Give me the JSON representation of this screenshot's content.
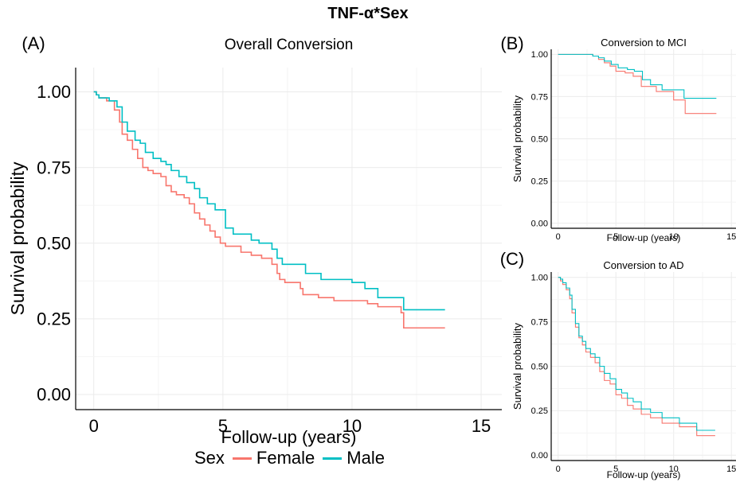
{
  "figure": {
    "title": "TNF-α*Sex",
    "legend": {
      "title": "Sex",
      "entries": [
        {
          "label": "Female",
          "color": "#F8766D"
        },
        {
          "label": "Male",
          "color": "#00BFC4"
        }
      ]
    }
  },
  "chart_data": [
    {
      "panel": "(A)",
      "type": "line",
      "step": true,
      "title": "Overall Conversion",
      "xlabel": "Follow-up (years)",
      "ylabel": "Survival probability",
      "xlim": [
        -0.7,
        15.8
      ],
      "ylim": [
        -0.05,
        1.08
      ],
      "xticks": [
        0,
        5,
        10,
        15
      ],
      "yticks": [
        0.0,
        0.25,
        0.5,
        0.75,
        1.0
      ],
      "ytick_labels": [
        "0.00",
        "0.25",
        "0.50",
        "0.75",
        "1.00"
      ],
      "grid": true,
      "series": [
        {
          "name": "Female",
          "color": "#F8766D",
          "x": [
            0,
            0.1,
            0.2,
            0.4,
            0.5,
            0.8,
            1.0,
            1.1,
            1.3,
            1.5,
            1.7,
            1.9,
            2.1,
            2.3,
            2.6,
            2.8,
            3.0,
            3.2,
            3.5,
            3.7,
            3.9,
            4.1,
            4.3,
            4.5,
            4.7,
            4.9,
            5.1,
            5.3,
            5.7,
            6.1,
            6.5,
            6.9,
            7.1,
            7.2,
            7.4,
            7.6,
            8.0,
            8.1,
            8.7,
            9.3,
            10.0,
            10.6,
            11.0,
            11.9,
            12.0,
            13.6
          ],
          "y": [
            1.0,
            0.99,
            0.98,
            0.98,
            0.97,
            0.94,
            0.9,
            0.86,
            0.84,
            0.81,
            0.78,
            0.75,
            0.74,
            0.73,
            0.72,
            0.69,
            0.67,
            0.66,
            0.65,
            0.63,
            0.6,
            0.58,
            0.56,
            0.54,
            0.52,
            0.5,
            0.49,
            0.49,
            0.47,
            0.46,
            0.45,
            0.43,
            0.4,
            0.38,
            0.37,
            0.37,
            0.35,
            0.33,
            0.32,
            0.31,
            0.31,
            0.3,
            0.29,
            0.27,
            0.22,
            0.22
          ]
        },
        {
          "name": "Male",
          "color": "#00BFC4",
          "x": [
            0,
            0.1,
            0.2,
            0.4,
            0.6,
            0.9,
            1.1,
            1.3,
            1.6,
            1.8,
            2.0,
            2.3,
            2.6,
            2.8,
            3.0,
            3.3,
            3.6,
            3.9,
            4.1,
            4.4,
            4.7,
            5.1,
            5.4,
            6.1,
            6.4,
            6.9,
            7.1,
            7.3,
            8.2,
            8.8,
            10.0,
            10.5,
            11.0,
            11.9,
            12.0,
            13.6
          ],
          "y": [
            1.0,
            0.99,
            0.98,
            0.98,
            0.97,
            0.95,
            0.9,
            0.87,
            0.84,
            0.83,
            0.8,
            0.78,
            0.77,
            0.76,
            0.74,
            0.72,
            0.7,
            0.68,
            0.65,
            0.63,
            0.61,
            0.55,
            0.53,
            0.51,
            0.5,
            0.48,
            0.45,
            0.43,
            0.4,
            0.38,
            0.37,
            0.35,
            0.32,
            0.32,
            0.28,
            0.28
          ]
        }
      ]
    },
    {
      "panel": "(B)",
      "type": "line",
      "step": true,
      "title": "Conversion to MCI",
      "xlabel": "Follow-up (years)",
      "ylabel": "Survival probability",
      "xlim": [
        -0.6,
        15.4
      ],
      "ylim": [
        -0.03,
        1.03
      ],
      "xticks": [
        0,
        5,
        10,
        15
      ],
      "yticks": [
        0.0,
        0.25,
        0.5,
        0.75,
        1.0
      ],
      "ytick_labels": [
        "0.00",
        "0.25",
        "0.50",
        "0.75",
        "1.00"
      ],
      "grid": true,
      "series": [
        {
          "name": "Female",
          "color": "#F8766D",
          "x": [
            0,
            2.0,
            3.0,
            3.5,
            4.0,
            4.5,
            5.0,
            5.8,
            6.5,
            7.2,
            8.5,
            10.0,
            11.0,
            13.7
          ],
          "y": [
            1.0,
            1.0,
            0.99,
            0.97,
            0.95,
            0.93,
            0.9,
            0.89,
            0.87,
            0.81,
            0.78,
            0.73,
            0.65,
            0.65
          ]
        },
        {
          "name": "Male",
          "color": "#00BFC4",
          "x": [
            0,
            2.5,
            3.0,
            3.5,
            4.0,
            4.6,
            5.2,
            6.0,
            6.6,
            7.3,
            8.0,
            9.0,
            10.9,
            13.7
          ],
          "y": [
            1.0,
            1.0,
            0.99,
            0.98,
            0.96,
            0.94,
            0.92,
            0.91,
            0.9,
            0.85,
            0.82,
            0.79,
            0.74,
            0.74
          ]
        }
      ]
    },
    {
      "panel": "(C)",
      "type": "line",
      "step": true,
      "title": "Conversion to AD",
      "xlabel": "Follow-up (years)",
      "ylabel": "Survival probability",
      "xlim": [
        -0.6,
        15.4
      ],
      "ylim": [
        -0.03,
        1.03
      ],
      "xticks": [
        0,
        5,
        10,
        15
      ],
      "yticks": [
        0.0,
        0.25,
        0.5,
        0.75,
        1.0
      ],
      "ytick_labels": [
        "0.00",
        "0.25",
        "0.50",
        "0.75",
        "1.00"
      ],
      "grid": true,
      "series": [
        {
          "name": "Female",
          "color": "#F8766D",
          "x": [
            0,
            0.2,
            0.4,
            0.7,
            1.0,
            1.2,
            1.5,
            1.8,
            2.1,
            2.4,
            2.8,
            3.2,
            3.6,
            4.0,
            4.5,
            5.0,
            5.5,
            6.0,
            6.5,
            7.2,
            8.0,
            9.0,
            10.5,
            12.0,
            13.6
          ],
          "y": [
            1.0,
            0.98,
            0.96,
            0.93,
            0.88,
            0.8,
            0.72,
            0.66,
            0.62,
            0.58,
            0.55,
            0.52,
            0.47,
            0.42,
            0.4,
            0.34,
            0.32,
            0.28,
            0.26,
            0.23,
            0.21,
            0.18,
            0.16,
            0.11,
            0.11
          ]
        },
        {
          "name": "Male",
          "color": "#00BFC4",
          "x": [
            0,
            0.2,
            0.4,
            0.7,
            1.0,
            1.2,
            1.5,
            1.8,
            2.1,
            2.4,
            2.8,
            3.2,
            3.6,
            4.0,
            4.5,
            5.0,
            5.5,
            6.0,
            6.5,
            7.2,
            8.0,
            9.0,
            10.5,
            12.0,
            13.6
          ],
          "y": [
            1.0,
            0.99,
            0.97,
            0.94,
            0.9,
            0.82,
            0.74,
            0.67,
            0.64,
            0.6,
            0.57,
            0.55,
            0.5,
            0.46,
            0.43,
            0.37,
            0.35,
            0.32,
            0.3,
            0.26,
            0.24,
            0.21,
            0.18,
            0.14,
            0.14
          ]
        }
      ]
    }
  ]
}
